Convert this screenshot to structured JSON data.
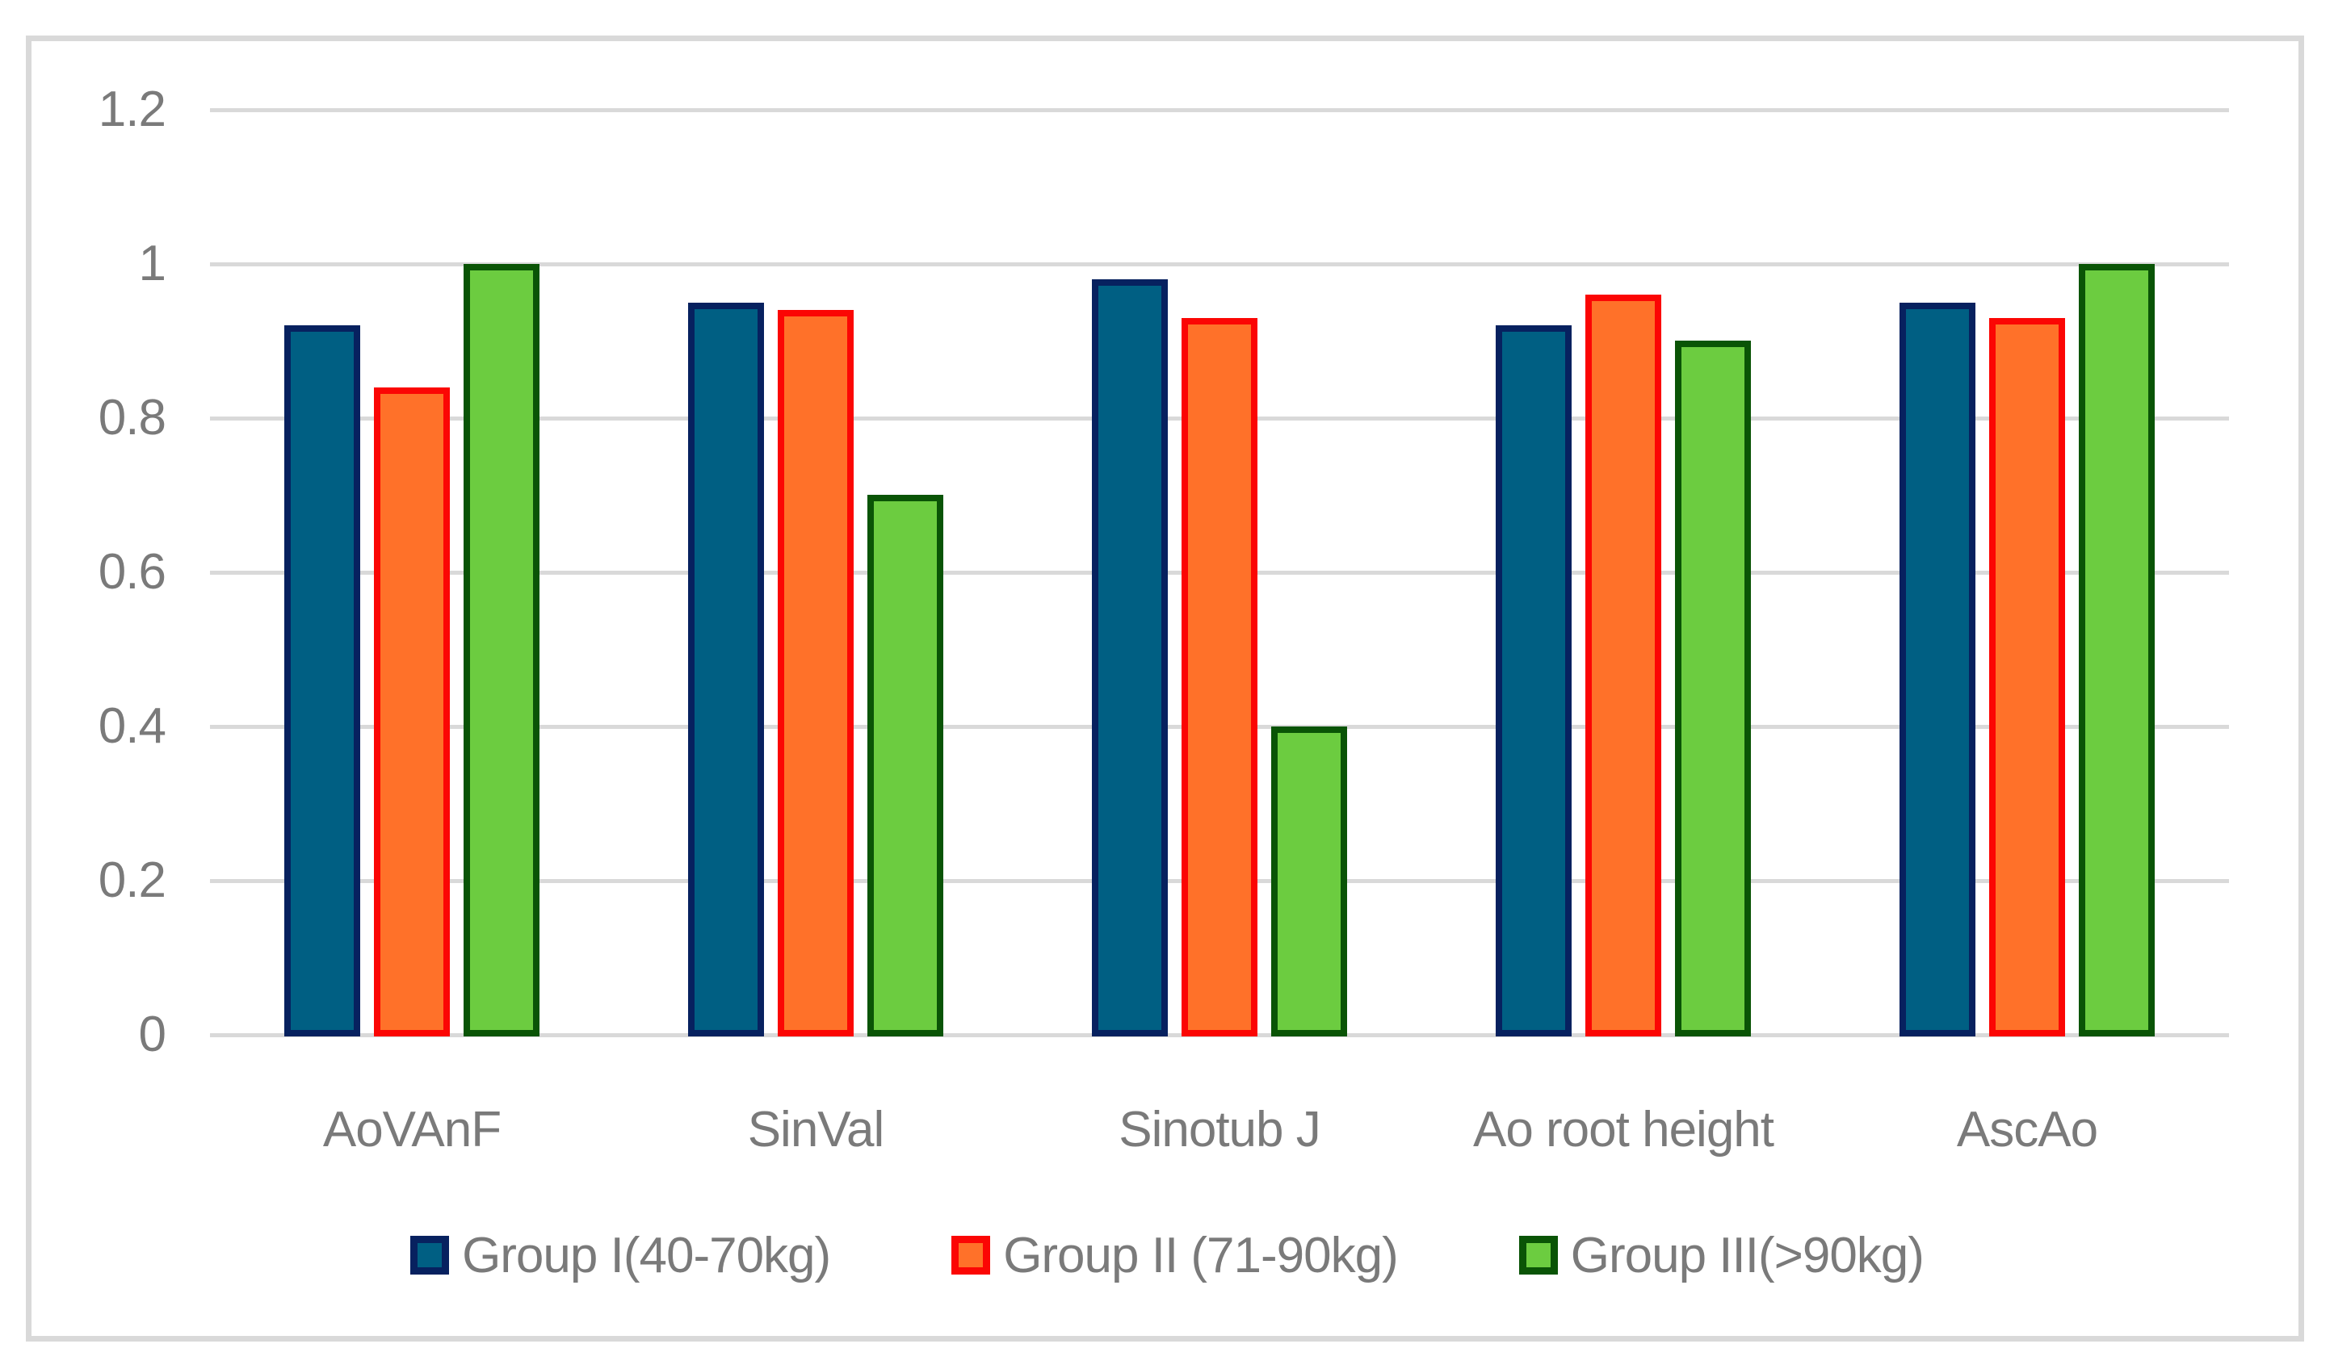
{
  "figure": {
    "background": "#FFFFFF",
    "frame_border_color": "#D9D9D9"
  },
  "chart_data": {
    "type": "bar",
    "title": "",
    "xlabel": "",
    "ylabel": "",
    "categories": [
      "AoVAnF",
      "SinVal",
      "Sinotub J",
      "Ao root height",
      "AscAo"
    ],
    "series": [
      {
        "name": "Group I(40-70kg)",
        "fill": "#005F83",
        "border": "#07215F",
        "values": [
          0.92,
          0.95,
          0.98,
          0.92,
          0.95
        ]
      },
      {
        "name": "Group II (71-90kg)",
        "fill": "#FF7129",
        "border": "#FB0604",
        "values": [
          0.84,
          0.94,
          0.93,
          0.96,
          0.93
        ]
      },
      {
        "name": "Group III(>90kg)",
        "fill": "#6CCC40",
        "border": "#0A5406",
        "values": [
          1.0,
          0.7,
          0.4,
          0.9,
          1.0
        ]
      }
    ],
    "y_axis": {
      "min": 0,
      "max": 1.2,
      "tick_interval": 0.2,
      "tick_labels": [
        "0",
        "0.2",
        "0.4",
        "0.6",
        "0.8",
        "1",
        "1.2"
      ]
    },
    "grid": true,
    "gridline_color": "#D9D9D9",
    "axis_text_color": "#7A7A7A",
    "legend_position": "bottom"
  }
}
